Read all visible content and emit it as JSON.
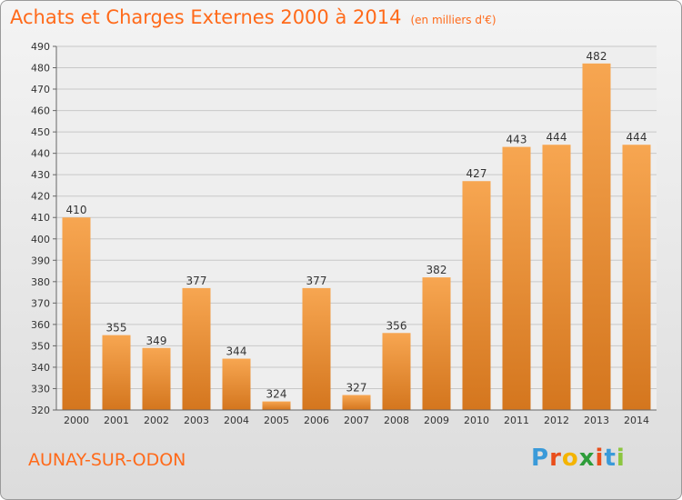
{
  "header": {
    "title": "Achats et Charges Externes 2000 à 2014",
    "subtitle": "(en milliers d'€)"
  },
  "footer": {
    "commune": "AUNAY-SUR-ODON",
    "logo_letters": [
      "P",
      "r",
      "o",
      "x",
      "i",
      "t",
      "i"
    ]
  },
  "colors": {
    "accent": "#ff6a1a",
    "bar_light": "#f7a651",
    "bar_dark": "#d4761e",
    "logo": [
      "#3a9ad9",
      "#e94e1b",
      "#f4b400",
      "#2e9d3a",
      "#e94e1b",
      "#3a9ad9",
      "#8cc63f"
    ]
  },
  "chart_data": {
    "type": "bar",
    "title": "Achats et Charges Externes 2000 à 2014",
    "subtitle": "(en milliers d'€)",
    "categories": [
      "2000",
      "2001",
      "2002",
      "2003",
      "2004",
      "2005",
      "2006",
      "2007",
      "2008",
      "2009",
      "2010",
      "2011",
      "2012",
      "2013",
      "2014"
    ],
    "values": [
      410,
      355,
      349,
      377,
      344,
      324,
      377,
      327,
      356,
      382,
      427,
      443,
      444,
      482,
      444
    ],
    "ylim": [
      320,
      490
    ],
    "yticks": [
      320,
      330,
      340,
      350,
      360,
      370,
      380,
      390,
      400,
      410,
      420,
      430,
      440,
      450,
      460,
      470,
      480,
      490
    ],
    "grid": true
  }
}
